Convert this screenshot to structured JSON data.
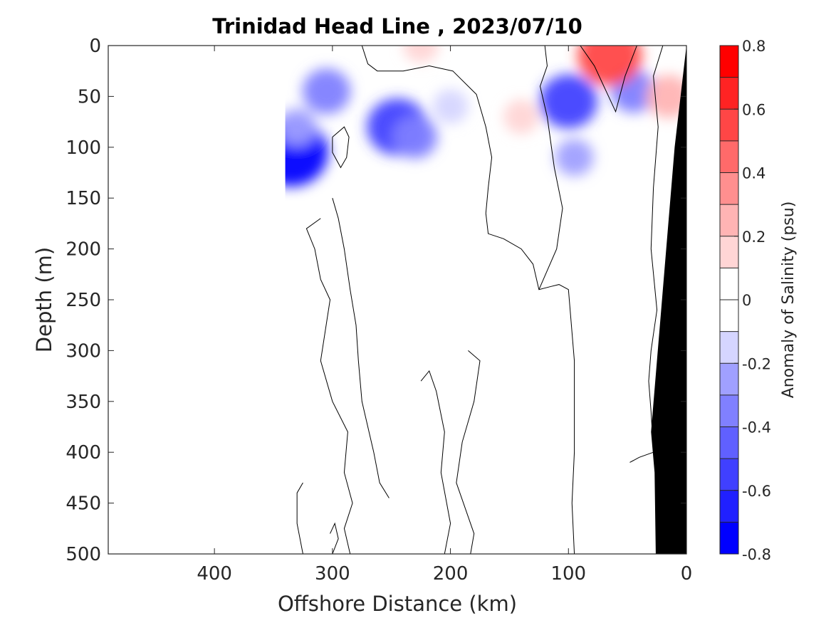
{
  "chart_data": {
    "type": "heatmap",
    "subtype": "filled-contour-section",
    "title": "Trinidad Head Line , 2023/07/10",
    "xlabel": "Offshore Distance (km)",
    "ylabel": "Depth (m)",
    "xlim": [
      490,
      0
    ],
    "ylim": [
      500,
      0
    ],
    "x_reversed": true,
    "y_reversed": true,
    "xticks": [
      400,
      300,
      200,
      100,
      0
    ],
    "yticks": [
      0,
      50,
      100,
      150,
      200,
      250,
      300,
      350,
      400,
      450,
      500
    ],
    "colorbar": {
      "label": "Anomaly of Salinity (psu)",
      "range": [
        -0.8,
        0.8
      ],
      "ticks": [
        -0.8,
        -0.6,
        -0.4,
        -0.2,
        0,
        0.2,
        0.4,
        0.6,
        0.8
      ],
      "levels": [
        {
          "min": -0.8,
          "max": -0.7,
          "color": "#0000ff"
        },
        {
          "min": -0.7,
          "max": -0.6,
          "color": "#2020ff"
        },
        {
          "min": -0.6,
          "max": -0.5,
          "color": "#4040ff"
        },
        {
          "min": -0.5,
          "max": -0.4,
          "color": "#6060ff"
        },
        {
          "min": -0.4,
          "max": -0.3,
          "color": "#8080ff"
        },
        {
          "min": -0.3,
          "max": -0.2,
          "color": "#a0a0ff"
        },
        {
          "min": -0.2,
          "max": -0.1,
          "color": "#d5d5ff"
        },
        {
          "min": -0.1,
          "max": 0,
          "color": "#ffffff"
        },
        {
          "min": 0,
          "max": 0.1,
          "color": "#ffffff"
        },
        {
          "min": 0.1,
          "max": 0.2,
          "color": "#ffd5d5"
        },
        {
          "min": 0.2,
          "max": 0.3,
          "color": "#ffb4b4"
        },
        {
          "min": 0.3,
          "max": 0.4,
          "color": "#ff8f8f"
        },
        {
          "min": 0.4,
          "max": 0.5,
          "color": "#ff6a6a"
        },
        {
          "min": 0.5,
          "max": 0.6,
          "color": "#ff4646"
        },
        {
          "min": 0.6,
          "max": 0.7,
          "color": "#ff2323"
        },
        {
          "min": 0.7,
          "max": 0.8,
          "color": "#ff0000"
        }
      ]
    },
    "data_extent_offshore_km": 340,
    "bottom_topography": [
      {
        "x": 0,
        "y": 0
      },
      {
        "x": 0,
        "y": 500
      },
      {
        "x": 26,
        "y": 500
      },
      {
        "x": 27,
        "y": 420
      },
      {
        "x": 30,
        "y": 380
      },
      {
        "x": 10,
        "y": 100
      }
    ],
    "anomaly_blobs": [
      {
        "x": 335,
        "y": 105,
        "value": -0.75
      },
      {
        "x": 330,
        "y": 80,
        "value": -0.2
      },
      {
        "x": 305,
        "y": 45,
        "value": -0.35
      },
      {
        "x": 245,
        "y": 80,
        "value": -0.55
      },
      {
        "x": 230,
        "y": 90,
        "value": -0.3
      },
      {
        "x": 200,
        "y": 60,
        "value": -0.15
      },
      {
        "x": 100,
        "y": 55,
        "value": -0.5
      },
      {
        "x": 95,
        "y": 110,
        "value": -0.2
      },
      {
        "x": 45,
        "y": 45,
        "value": -0.3
      },
      {
        "x": 140,
        "y": 70,
        "value": 0.15
      },
      {
        "x": 65,
        "y": 10,
        "value": 0.6
      },
      {
        "x": 15,
        "y": 50,
        "value": 0.3
      },
      {
        "x": 225,
        "y": 0,
        "value": 0.15
      }
    ],
    "zero_contours": [
      [
        [
          275,
          0
        ],
        [
          270,
          18
        ],
        [
          262,
          25
        ],
        [
          240,
          25
        ],
        [
          218,
          20
        ],
        [
          198,
          25
        ],
        [
          178,
          48
        ],
        [
          170,
          80
        ],
        [
          165,
          110
        ],
        [
          168,
          140
        ],
        [
          170,
          165
        ],
        [
          168,
          185
        ],
        [
          155,
          190
        ],
        [
          140,
          200
        ],
        [
          130,
          215
        ],
        [
          125,
          240
        ],
        [
          115,
          237
        ],
        [
          108,
          235
        ],
        [
          100,
          240
        ],
        [
          95,
          310
        ],
        [
          95,
          400
        ],
        [
          97,
          450
        ],
        [
          95,
          500
        ]
      ],
      [
        [
          120,
          0
        ],
        [
          118,
          20
        ],
        [
          124,
          40
        ],
        [
          118,
          70
        ],
        [
          112,
          120
        ],
        [
          105,
          160
        ],
        [
          110,
          200
        ],
        [
          125,
          240
        ]
      ],
      [
        [
          90,
          0
        ],
        [
          78,
          20
        ],
        [
          70,
          40
        ],
        [
          60,
          65
        ],
        [
          52,
          30
        ],
        [
          42,
          0
        ]
      ],
      [
        [
          20,
          0
        ],
        [
          28,
          30
        ],
        [
          24,
          80
        ],
        [
          28,
          140
        ],
        [
          30,
          200
        ],
        [
          25,
          260
        ],
        [
          30,
          300
        ],
        [
          32,
          330
        ],
        [
          30,
          360
        ],
        [
          28,
          400
        ],
        [
          40,
          405
        ],
        [
          48,
          410
        ]
      ],
      [
        [
          300,
          90
        ],
        [
          290,
          80
        ],
        [
          286,
          90
        ],
        [
          288,
          110
        ],
        [
          293,
          120
        ],
        [
          300,
          105
        ],
        [
          300,
          90
        ]
      ],
      [
        [
          185,
          300
        ],
        [
          175,
          310
        ],
        [
          180,
          350
        ],
        [
          190,
          390
        ],
        [
          195,
          430
        ],
        [
          180,
          480
        ],
        [
          183,
          500
        ]
      ],
      [
        [
          225,
          330
        ],
        [
          218,
          320
        ],
        [
          212,
          340
        ],
        [
          205,
          380
        ],
        [
          208,
          420
        ],
        [
          200,
          470
        ],
        [
          205,
          500
        ]
      ],
      [
        [
          300,
          150
        ],
        [
          295,
          170
        ],
        [
          290,
          200
        ],
        [
          285,
          240
        ],
        [
          280,
          275
        ],
        [
          278,
          310
        ],
        [
          275,
          350
        ],
        [
          265,
          400
        ],
        [
          260,
          430
        ],
        [
          252,
          445
        ]
      ],
      [
        [
          310,
          170
        ],
        [
          322,
          180
        ],
        [
          315,
          200
        ],
        [
          310,
          230
        ],
        [
          302,
          250
        ],
        [
          310,
          310
        ],
        [
          300,
          350
        ],
        [
          287,
          380
        ],
        [
          290,
          420
        ],
        [
          283,
          450
        ],
        [
          290,
          475
        ],
        [
          285,
          500
        ]
      ],
      [
        [
          302,
          480
        ],
        [
          298,
          470
        ],
        [
          295,
          485
        ],
        [
          300,
          500
        ]
      ],
      [
        [
          325,
          430
        ],
        [
          330,
          440
        ],
        [
          330,
          470
        ],
        [
          325,
          500
        ]
      ]
    ]
  }
}
